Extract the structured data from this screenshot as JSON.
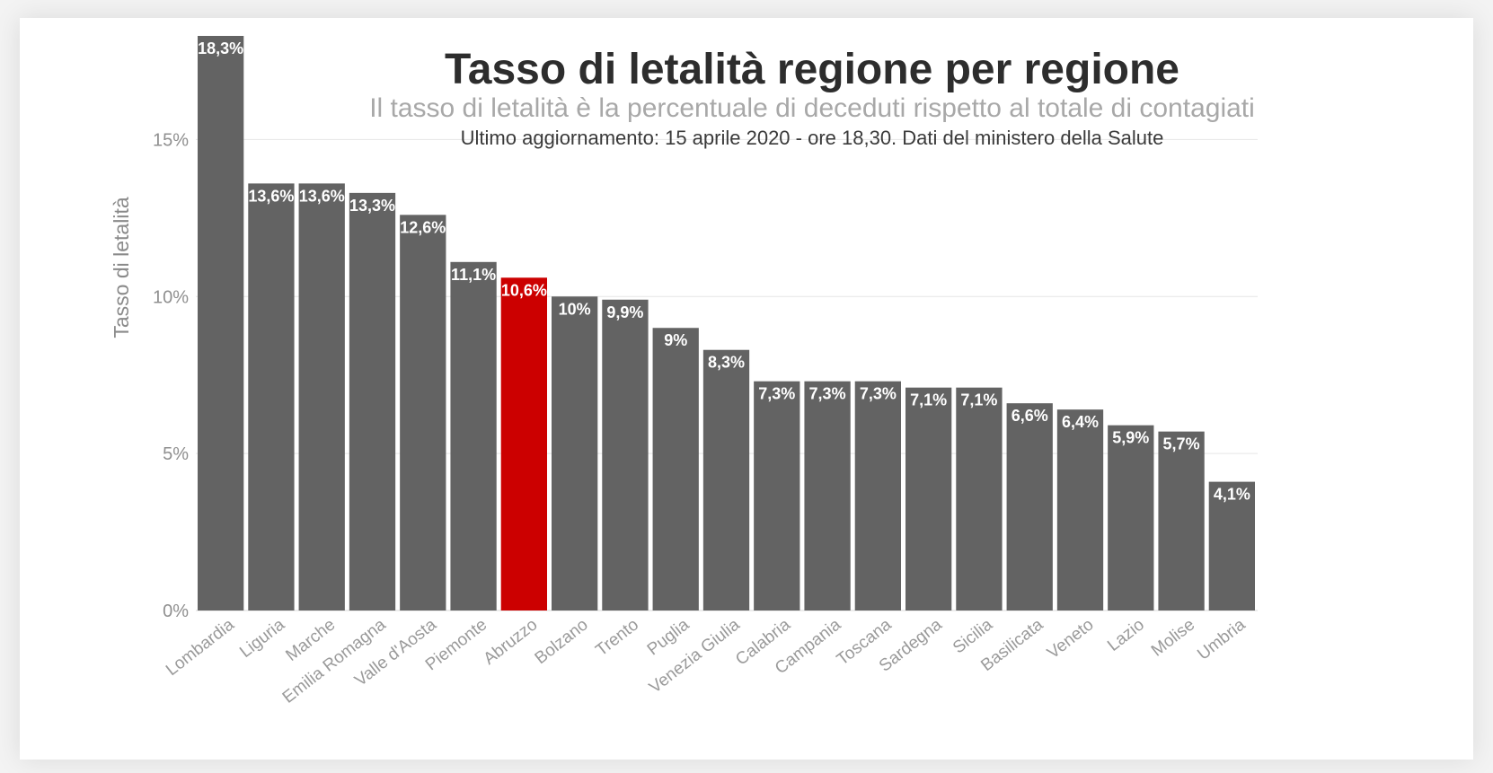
{
  "chart_data": {
    "type": "bar",
    "title": "Tasso di letalità regione per regione",
    "subtitle": "Il tasso di letalità è la percentuale di deceduti rispetto al totale di contagiati",
    "note": "Ultimo aggiornamento: 15 aprile 2020 - ore 18,30. Dati del ministero della Salute",
    "xlabel": "",
    "ylabel": "Tasso di letalità",
    "ylim": [
      0,
      18.3
    ],
    "yticks": [
      {
        "value": 0,
        "label": "0%"
      },
      {
        "value": 5,
        "label": "5%"
      },
      {
        "value": 10,
        "label": "10%"
      },
      {
        "value": 15,
        "label": "15%"
      }
    ],
    "grid": true,
    "categories": [
      "Lombardia",
      "Liguria",
      "Marche",
      "Emilia Romagna",
      "Valle d'Aosta",
      "Piemonte",
      "Abruzzo",
      "Bolzano",
      "Trento",
      "Puglia",
      "Venezia Giulia",
      "Calabria",
      "Campania",
      "Toscana",
      "Sardegna",
      "Sicilia",
      "Basilicata",
      "Veneto",
      "Lazio",
      "Molise",
      "Umbria"
    ],
    "values": [
      18.3,
      13.6,
      13.6,
      13.3,
      12.6,
      11.1,
      10.6,
      10,
      9.9,
      9,
      8.3,
      7.3,
      7.3,
      7.3,
      7.1,
      7.1,
      6.6,
      6.4,
      5.9,
      5.7,
      4.1
    ],
    "value_labels": [
      "18,3%",
      "13,6%",
      "13,6%",
      "13,3%",
      "12,6%",
      "11,1%",
      "10,6%",
      "10%",
      "9,9%",
      "9%",
      "8,3%",
      "7,3%",
      "7,3%",
      "7,3%",
      "7,1%",
      "7,1%",
      "6,6%",
      "6,4%",
      "5,9%",
      "5,7%",
      "4,1%"
    ],
    "highlight": "Abruzzo",
    "colors": {
      "bar": "#636363",
      "highlight": "#cc0000",
      "grid": "#e6e6e6",
      "label": "#ffffff"
    }
  }
}
